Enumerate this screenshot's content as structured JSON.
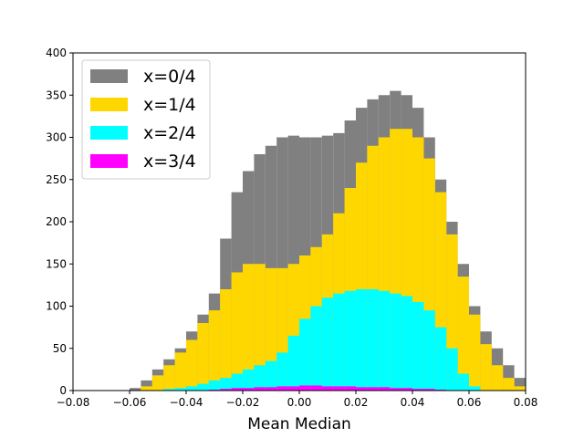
{
  "chart_data": {
    "type": "bar",
    "title": "",
    "xlabel": "Mean Median",
    "ylabel": "",
    "xlim": [
      -0.08,
      0.08
    ],
    "ylim": [
      0,
      400
    ],
    "x_ticks": [
      "−0.08",
      "−0.06",
      "−0.04",
      "−0.02",
      "0.00",
      "0.02",
      "0.04",
      "0.06",
      "0.08"
    ],
    "y_ticks": [
      "0",
      "50",
      "100",
      "150",
      "200",
      "250",
      "300",
      "350",
      "400"
    ],
    "grid": false,
    "legend_position": "top-left",
    "overlay": true,
    "x": [
      -0.058,
      -0.054,
      -0.05,
      -0.046,
      -0.042,
      -0.038,
      -0.034,
      -0.03,
      -0.026,
      -0.022,
      -0.018,
      -0.014,
      -0.01,
      -0.006,
      -0.002,
      0.002,
      0.006,
      0.01,
      0.014,
      0.018,
      0.022,
      0.026,
      0.03,
      0.034,
      0.038,
      0.042,
      0.046,
      0.05,
      0.054,
      0.058,
      0.062,
      0.066,
      0.07,
      0.074,
      0.078
    ],
    "series": [
      {
        "name": "x=0/4",
        "color": "#808080",
        "values": [
          3,
          12,
          25,
          37,
          50,
          70,
          90,
          115,
          180,
          235,
          260,
          280,
          290,
          300,
          302,
          300,
          300,
          302,
          305,
          320,
          335,
          345,
          350,
          355,
          350,
          335,
          300,
          250,
          200,
          150,
          100,
          70,
          50,
          30,
          15
        ]
      },
      {
        "name": "x=1/4",
        "color": "#ffd700",
        "values": [
          0,
          5,
          18,
          30,
          45,
          60,
          80,
          95,
          120,
          140,
          150,
          150,
          145,
          145,
          150,
          160,
          170,
          185,
          210,
          240,
          270,
          290,
          300,
          310,
          310,
          300,
          275,
          235,
          185,
          135,
          90,
          55,
          30,
          15,
          5
        ]
      },
      {
        "name": "x=2/4",
        "color": "#00ffff",
        "values": [
          0,
          0,
          0,
          2,
          3,
          5,
          8,
          12,
          15,
          20,
          25,
          30,
          35,
          45,
          65,
          85,
          100,
          110,
          115,
          118,
          120,
          120,
          118,
          115,
          112,
          105,
          95,
          75,
          50,
          20,
          5,
          0,
          0,
          0,
          0
        ]
      },
      {
        "name": "x=3/4",
        "color": "#ff00ff",
        "values": [
          0,
          0,
          0,
          0,
          0,
          0,
          0,
          1,
          2,
          3,
          3,
          4,
          4,
          5,
          5,
          6,
          6,
          5,
          5,
          5,
          4,
          4,
          4,
          3,
          3,
          2,
          2,
          1,
          0,
          0,
          0,
          0,
          0,
          0,
          0
        ]
      }
    ]
  }
}
